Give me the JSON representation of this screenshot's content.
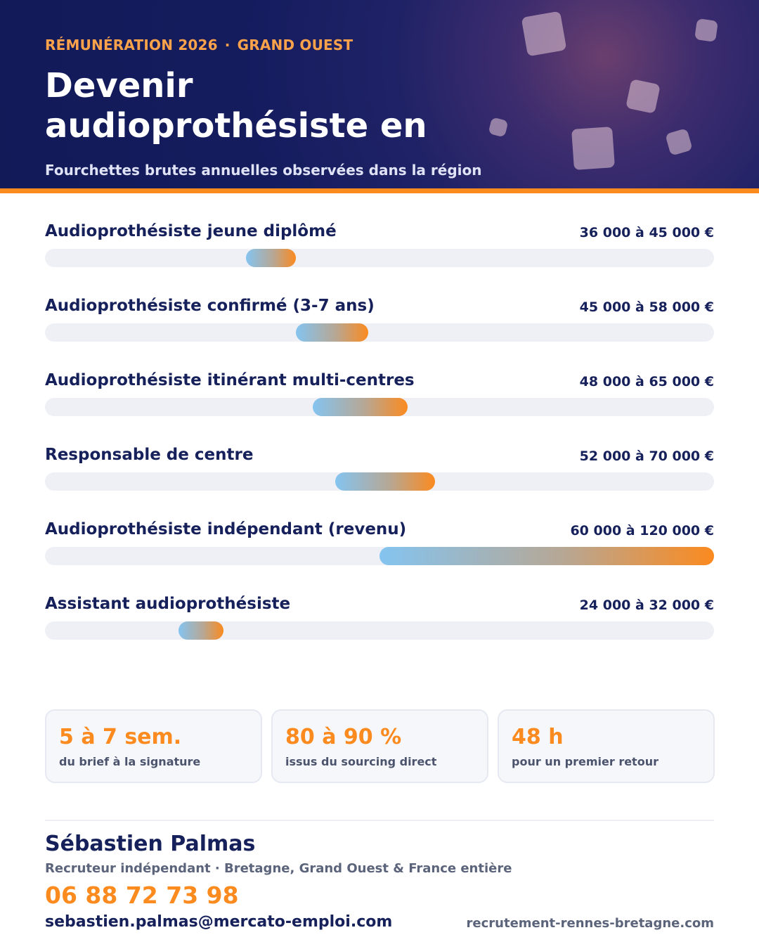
{
  "header": {
    "kicker_left": "RÉMUNÉRATION 2026",
    "kicker_sep": "·",
    "kicker_right": "GRAND OUEST",
    "title": "Devenir audioprothésiste en",
    "subtitle": "Fourchettes brutes annuelles observées dans la région"
  },
  "chart_data": {
    "type": "bar",
    "orientation": "horizontal-range",
    "grid": false,
    "xlim": [
      0,
      120000
    ],
    "categories": [
      "Audioprothésiste jeune diplômé",
      "Audioprothésiste confirmé (3-7 ans)",
      "Audioprothésiste itinérant multi-centres",
      "Responsable de centre",
      "Audioprothésiste indépendant (revenu)",
      "Assistant audioprothésiste"
    ],
    "ranges": [
      [
        36000,
        45000
      ],
      [
        45000,
        58000
      ],
      [
        48000,
        65000
      ],
      [
        52000,
        70000
      ],
      [
        60000,
        120000
      ],
      [
        24000,
        32000
      ]
    ],
    "value_labels": [
      "36 000 à 45 000 €",
      "45 000 à 58 000 €",
      "48 000 à 65 000 €",
      "52 000 à 70 000 €",
      "60 000 à 120 000 €",
      "24 000 à 32 000 €"
    ],
    "colors": {
      "range_start": "#84c4f0",
      "range_end": "#fb8a1f",
      "track": "#eef0f6"
    }
  },
  "kpis": [
    {
      "value": "5 à 7 sem.",
      "label": "du brief à la signature"
    },
    {
      "value": "80 à 90 %",
      "label": "issus du sourcing direct"
    },
    {
      "value": "48 h",
      "label": "pour un premier retour"
    }
  ],
  "contact": {
    "name": "Sébastien Palmas",
    "role": "Recruteur indépendant · Bretagne, Grand Ouest & France entière",
    "phone": "06 88 72 73 98",
    "email": "sebastien.palmas@mercato-emploi.com",
    "website": "recrutement-rennes-bretagne.com"
  },
  "colors": {
    "navy": "#16205a",
    "accent": "#fb8a1f",
    "kicker": "#fba24a"
  }
}
